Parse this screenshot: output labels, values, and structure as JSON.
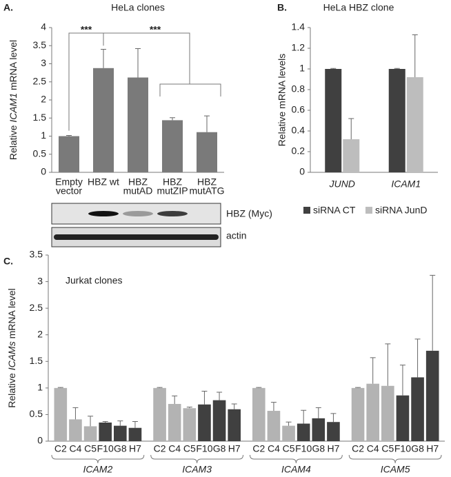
{
  "chart_data": [
    {
      "type": "bar",
      "panel_label": "A.",
      "title": "HeLa clones",
      "y_label": [
        "Relative ",
        "ICAM1",
        " mRNA level"
      ],
      "categories": [
        [
          "Empty",
          "vector"
        ],
        [
          "HBZ wt"
        ],
        [
          "HBZ",
          "mutAD"
        ],
        [
          "HBZ",
          "mutZIP"
        ],
        [
          "HBZ",
          "mutATG"
        ]
      ],
      "values": [
        1,
        2.88,
        2.62,
        1.44,
        1.11
      ],
      "errors": [
        0.02,
        0.52,
        0.8,
        0.07,
        0.45
      ],
      "color": "#7a7a7a",
      "ylim": [
        0,
        4
      ],
      "yticks": [
        0,
        0.5,
        1,
        1.5,
        2,
        2.5,
        3,
        3.5,
        4
      ],
      "annotations": [
        "***",
        "***"
      ],
      "blot_labels": [
        "HBZ (Myc)",
        "actin"
      ]
    },
    {
      "type": "grouped_bar",
      "panel_label": "B.",
      "title": "HeLa HBZ clone",
      "y_label": "Relative mRNA levels",
      "categories": [
        "JUND",
        "ICAM1"
      ],
      "series": [
        {
          "name": "siRNA CT",
          "color": "#404040",
          "values": [
            1,
            1
          ],
          "errors": [
            0.005,
            0.005
          ]
        },
        {
          "name": "siRNA JunD",
          "color": "#bdbdbd",
          "values": [
            0.32,
            0.92
          ],
          "errors": [
            0.2,
            0.41
          ]
        }
      ],
      "ylim": [
        0,
        1.4
      ],
      "yticks": [
        0,
        0.2,
        0.4,
        0.6,
        0.8,
        1,
        1.2,
        1.4
      ],
      "legend": "bottom"
    },
    {
      "type": "multi_group_bar",
      "panel_label": "C.",
      "title": "Jurkat clones",
      "y_label": [
        "Relative ",
        "ICAMs",
        " mRNA level"
      ],
      "colors": [
        "#b3b3b3",
        "#b3b3b3",
        "#b3b3b3",
        "#404040",
        "#404040",
        "#404040"
      ],
      "groups": [
        {
          "name": "ICAM2",
          "categories": [
            "C2",
            "C4",
            "C5",
            "F10",
            "G8",
            "H7"
          ],
          "values": [
            1,
            0.41,
            0.28,
            0.35,
            0.29,
            0.25
          ],
          "errors": [
            0.01,
            0.22,
            0.19,
            0.02,
            0.09,
            0.12
          ]
        },
        {
          "name": "ICAM3",
          "categories": [
            "C2",
            "C4",
            "C5",
            "F10",
            "G8",
            "H7"
          ],
          "values": [
            1,
            0.7,
            0.62,
            0.69,
            0.77,
            0.6
          ],
          "errors": [
            0.01,
            0.15,
            0.02,
            0.25,
            0.15,
            0.1
          ]
        },
        {
          "name": "ICAM4",
          "categories": [
            "C2",
            "C4",
            "C5",
            "F10",
            "G8",
            "H7"
          ],
          "values": [
            1,
            0.57,
            0.29,
            0.33,
            0.43,
            0.36
          ],
          "errors": [
            0.01,
            0.16,
            0.07,
            0.25,
            0.2,
            0.16
          ]
        },
        {
          "name": "ICAM5",
          "categories": [
            "C2",
            "C4",
            "C5",
            "F10",
            "G8",
            "H7"
          ],
          "values": [
            1,
            1.08,
            1.04,
            0.86,
            1.2,
            1.7
          ],
          "errors": [
            0.01,
            0.49,
            0.79,
            0.57,
            0.72,
            1.42
          ]
        }
      ],
      "ylim": [
        0,
        3.5
      ],
      "yticks": [
        0,
        0.5,
        1,
        1.5,
        2,
        2.5,
        3,
        3.5
      ]
    }
  ]
}
